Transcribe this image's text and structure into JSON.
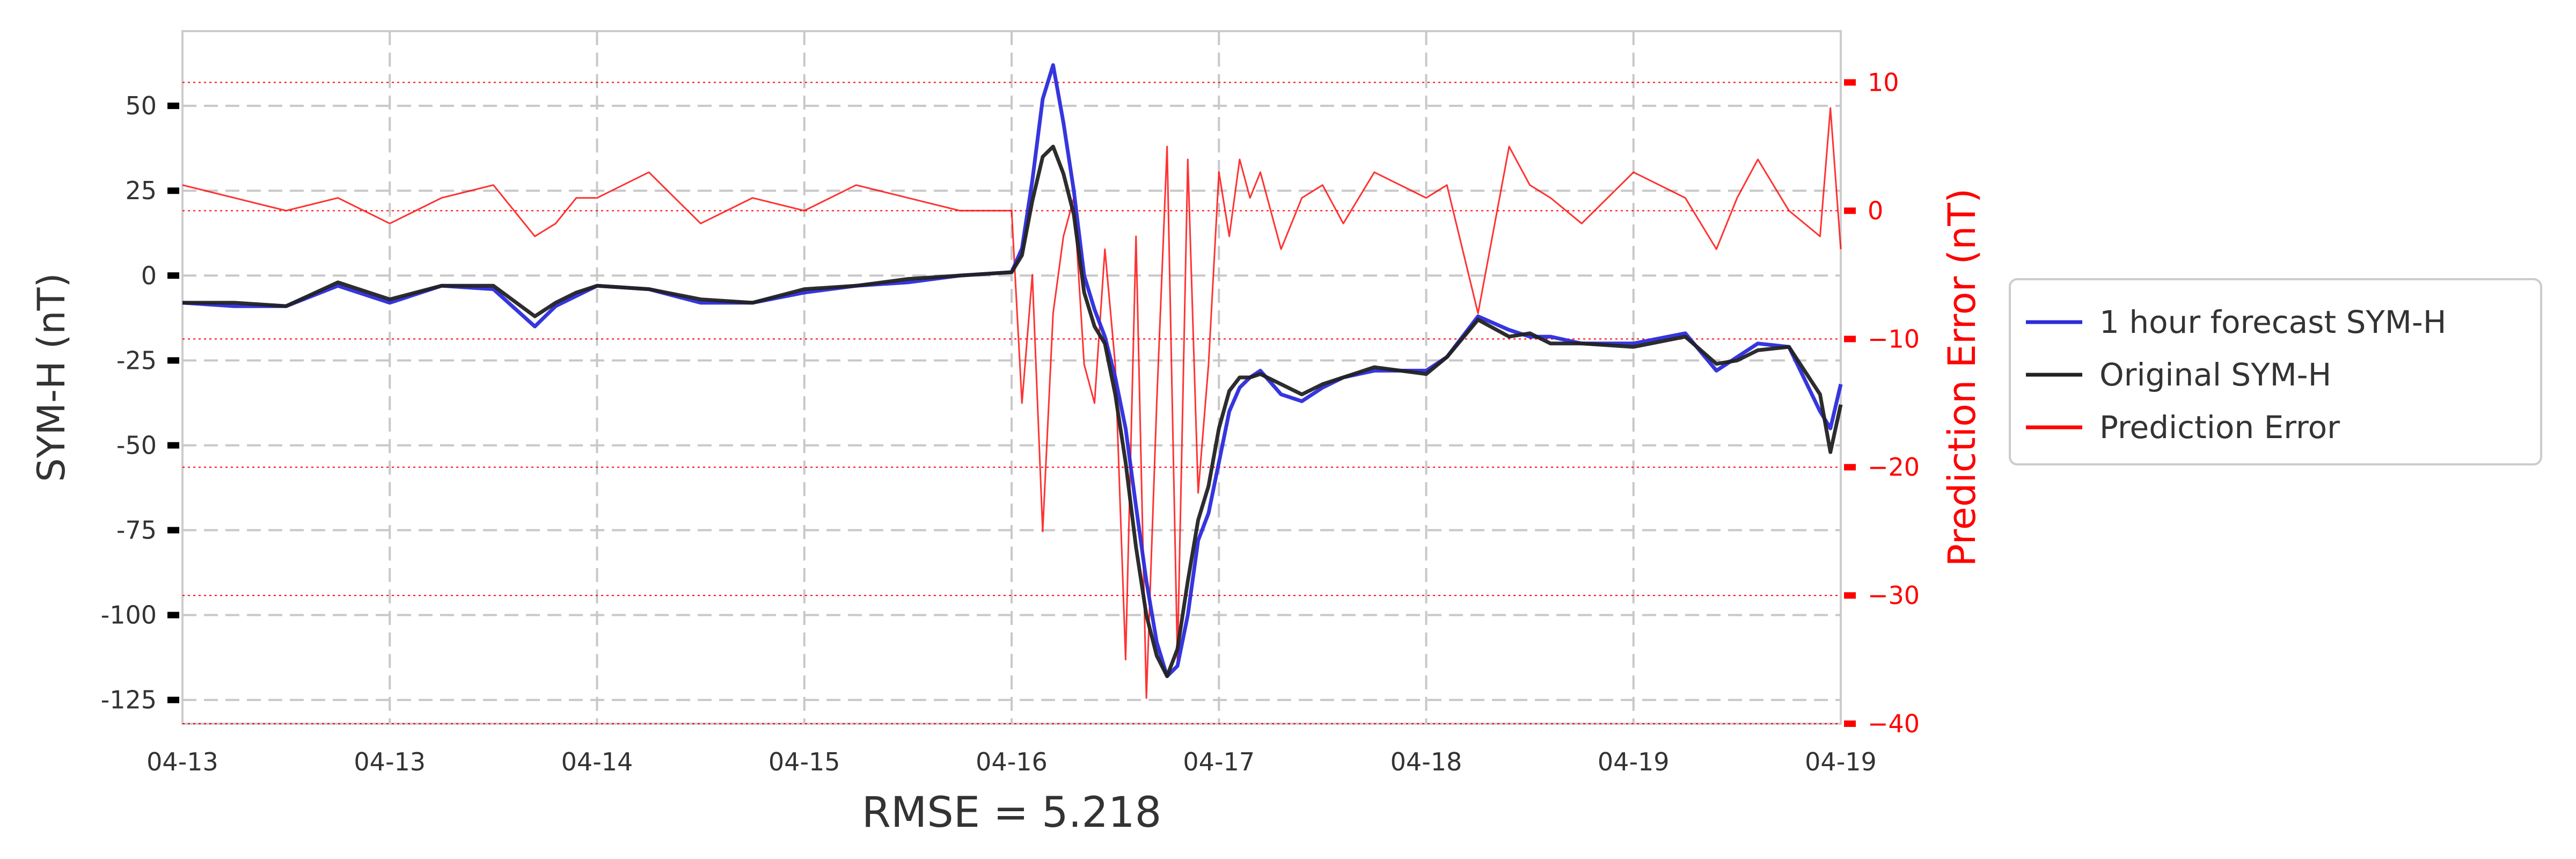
{
  "chart_data": {
    "type": "line",
    "title": "",
    "footer": "RMSE = 5.218",
    "x_tick_labels": [
      "04-13",
      "04-13",
      "04-14",
      "04-15",
      "04-16",
      "04-17",
      "04-18",
      "04-19",
      "04-19"
    ],
    "left_axis": {
      "label": "SYM-H (nT)",
      "ylim": [
        -132,
        72
      ],
      "ticks": [
        50,
        25,
        0,
        -25,
        -50,
        -75,
        -100,
        -125
      ]
    },
    "right_axis": {
      "label": "Prediction Error (nT)",
      "ylim": [
        -40,
        14
      ],
      "ticks": [
        10,
        0,
        -10,
        -20,
        -30,
        -40
      ],
      "color": "#ff0000"
    },
    "legend": {
      "position": "right-outside",
      "entries": [
        {
          "label": "1 hour forecast SYM-H",
          "color": "#2b2bdc"
        },
        {
          "label": "Original SYM-H",
          "color": "#222222"
        },
        {
          "label": "Prediction Error",
          "color": "#ff0000"
        }
      ]
    },
    "grid": true,
    "x": [
      0,
      0.25,
      0.5,
      0.75,
      1,
      1.25,
      1.5,
      1.7,
      1.8,
      1.9,
      2,
      2.25,
      2.5,
      2.75,
      3,
      3.25,
      3.5,
      3.75,
      4,
      4.05,
      4.1,
      4.15,
      4.2,
      4.25,
      4.3,
      4.35,
      4.4,
      4.45,
      4.5,
      4.55,
      4.6,
      4.65,
      4.7,
      4.75,
      4.8,
      4.85,
      4.9,
      4.95,
      5,
      5.05,
      5.1,
      5.15,
      5.2,
      5.3,
      5.4,
      5.5,
      5.6,
      5.75,
      6,
      6.1,
      6.25,
      6.4,
      6.5,
      6.6,
      6.75,
      7,
      7.25,
      7.4,
      7.5,
      7.6,
      7.75,
      7.9,
      7.95,
      8
    ],
    "series": [
      {
        "name": "1 hour forecast SYM-H",
        "color": "#2b2bdc",
        "axis": "left",
        "values": [
          -8,
          -9,
          -9,
          -3,
          -8,
          -3,
          -4,
          -15,
          -9,
          -6,
          -3,
          -4,
          -8,
          -8,
          -5,
          -3,
          -2,
          0,
          1,
          8,
          28,
          52,
          62,
          45,
          25,
          0,
          -10,
          -18,
          -30,
          -45,
          -68,
          -90,
          -108,
          -118,
          -115,
          -100,
          -78,
          -70,
          -55,
          -40,
          -33,
          -30,
          -28,
          -35,
          -37,
          -33,
          -30,
          -28,
          -28,
          -24,
          -12,
          -16,
          -18,
          -18,
          -20,
          -20,
          -17,
          -28,
          -24,
          -20,
          -21,
          -40,
          -45,
          -32
        ]
      },
      {
        "name": "Original SYM-H",
        "color": "#222222",
        "axis": "left",
        "values": [
          -8,
          -8,
          -9,
          -2,
          -7,
          -3,
          -3,
          -12,
          -8,
          -5,
          -3,
          -4,
          -7,
          -8,
          -4,
          -3,
          -1,
          0,
          1,
          6,
          22,
          35,
          38,
          30,
          18,
          -5,
          -15,
          -20,
          -35,
          -55,
          -80,
          -100,
          -112,
          -118,
          -110,
          -90,
          -72,
          -62,
          -45,
          -34,
          -30,
          -30,
          -29,
          -32,
          -35,
          -32,
          -30,
          -27,
          -29,
          -24,
          -13,
          -18,
          -17,
          -20,
          -20,
          -21,
          -18,
          -26,
          -25,
          -22,
          -21,
          -35,
          -52,
          -38
        ]
      },
      {
        "name": "Prediction Error",
        "color": "#ff0000",
        "axis": "right",
        "values": [
          2,
          1,
          0,
          1,
          -1,
          1,
          2,
          -2,
          -1,
          1,
          1,
          3,
          -1,
          1,
          0,
          2,
          1,
          0,
          0,
          -15,
          -5,
          -25,
          -8,
          -2,
          1,
          -12,
          -15,
          -3,
          -12,
          -35,
          -2,
          -38,
          -15,
          5,
          -35,
          4,
          -22,
          -12,
          3,
          -2,
          4,
          1,
          3,
          -3,
          1,
          2,
          -1,
          3,
          1,
          2,
          -8,
          5,
          2,
          1,
          -1,
          3,
          1,
          -3,
          1,
          4,
          0,
          -2,
          8,
          -3
        ]
      }
    ]
  }
}
